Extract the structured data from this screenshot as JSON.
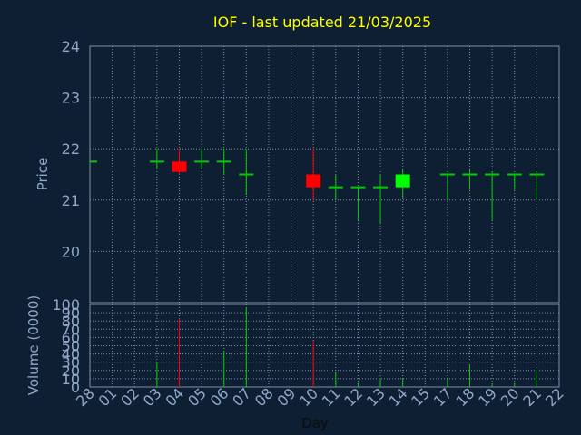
{
  "chart_data": {
    "type": "candlestick",
    "title": "IOF - last updated 21/03/2025",
    "xlabel": "Day",
    "ylabel_price": "Price",
    "ylabel_volume": "Volume (0000)",
    "x_ticks": [
      "28",
      "01",
      "02",
      "03",
      "04",
      "05",
      "06",
      "07",
      "08",
      "09",
      "10",
      "11",
      "12",
      "13",
      "14",
      "15",
      "17",
      "18",
      "19",
      "20",
      "21",
      "22"
    ],
    "price_ylim": [
      19.0,
      24.0
    ],
    "price_yticks": [
      "20",
      "21",
      "22",
      "23",
      "24"
    ],
    "volume_ylim": [
      0,
      100
    ],
    "volume_yticks": [
      "0",
      "10",
      "20",
      "30",
      "40",
      "50",
      "60",
      "70",
      "80",
      "90",
      "100"
    ],
    "grid": true,
    "colors": {
      "background": "#0f1f33",
      "up": "#00ff00",
      "down": "#ff0000",
      "neutral_wick": "#00cc00",
      "grid": "#7f8fa6",
      "axis_text": "#8fa8c8",
      "title": "#ffff00"
    },
    "candles": [
      {
        "x": "28",
        "open": 21.75,
        "high": 21.75,
        "low": 21.75,
        "close": 21.75,
        "volume": 0
      },
      {
        "x": "03",
        "open": 21.75,
        "high": 22.0,
        "low": 21.6,
        "close": 21.75,
        "volume": 30
      },
      {
        "x": "04",
        "open": 21.75,
        "high": 22.0,
        "low": 21.5,
        "close": 21.55,
        "volume": 83
      },
      {
        "x": "05",
        "open": 21.75,
        "high": 22.0,
        "low": 21.6,
        "close": 21.75,
        "volume": 0
      },
      {
        "x": "06",
        "open": 21.75,
        "high": 22.0,
        "low": 21.5,
        "close": 21.75,
        "volume": 43
      },
      {
        "x": "07",
        "open": 21.5,
        "high": 22.0,
        "low": 21.1,
        "close": 21.5,
        "volume": 96
      },
      {
        "x": "10",
        "open": 21.5,
        "high": 22.0,
        "low": 21.0,
        "close": 21.25,
        "volume": 56
      },
      {
        "x": "11",
        "open": 21.25,
        "high": 21.5,
        "low": 21.0,
        "close": 21.25,
        "volume": 18
      },
      {
        "x": "12",
        "open": 21.25,
        "high": 21.25,
        "low": 20.6,
        "close": 21.25,
        "volume": 5
      },
      {
        "x": "13",
        "open": 21.25,
        "high": 21.5,
        "low": 20.55,
        "close": 21.25,
        "volume": 10
      },
      {
        "x": "14",
        "open": 21.25,
        "high": 21.6,
        "low": 21.05,
        "close": 21.5,
        "volume": 10
      },
      {
        "x": "17",
        "open": 21.5,
        "high": 21.5,
        "low": 21.0,
        "close": 21.5,
        "volume": 10
      },
      {
        "x": "18",
        "open": 21.5,
        "high": 21.6,
        "low": 21.2,
        "close": 21.5,
        "volume": 26
      },
      {
        "x": "19",
        "open": 21.5,
        "high": 21.55,
        "low": 20.6,
        "close": 21.5,
        "volume": 3
      },
      {
        "x": "20",
        "open": 21.5,
        "high": 21.5,
        "low": 21.2,
        "close": 21.5,
        "volume": 5
      },
      {
        "x": "21",
        "open": 21.5,
        "high": 21.55,
        "low": 21.0,
        "close": 21.5,
        "volume": 20
      }
    ]
  }
}
